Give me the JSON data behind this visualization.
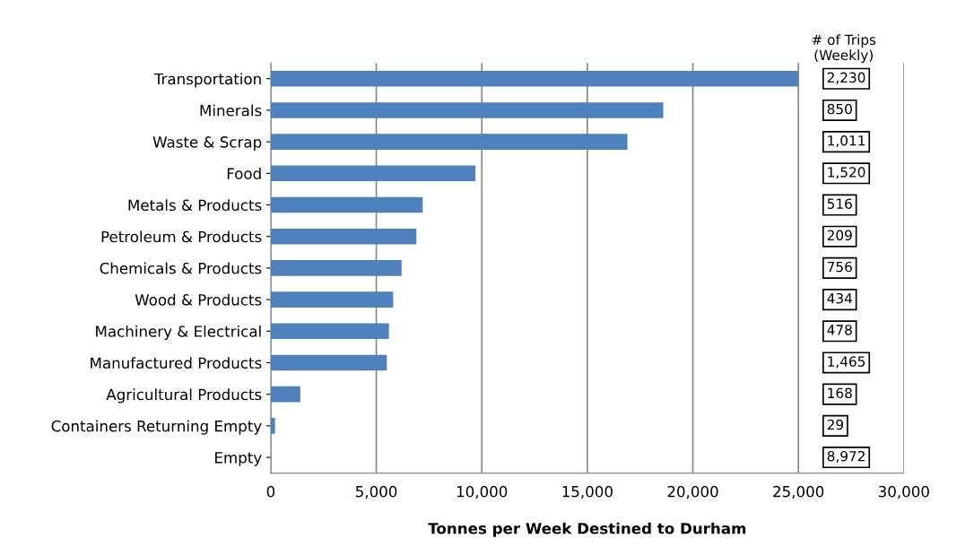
{
  "chart_data": {
    "type": "bar",
    "orientation": "horizontal",
    "categories": [
      "Transportation",
      "Minerals",
      "Waste & Scrap",
      "Food",
      "Metals & Products",
      "Petroleum & Products",
      "Chemicals & Products",
      "Wood & Products",
      "Machinery & Electrical",
      "Manufactured Products",
      "Agricultural Products",
      "Containers Returning Empty",
      "Empty"
    ],
    "values": [
      25000,
      18600,
      16900,
      9700,
      7200,
      6900,
      6200,
      5800,
      5600,
      5500,
      1400,
      200,
      0
    ],
    "color": "#4f81bd",
    "xlabel": "Tonnes per Week Destined to Durham",
    "xlim": [
      0,
      30000
    ],
    "xticks": [
      {
        "value": 0,
        "label": "0"
      },
      {
        "value": 5000,
        "label": "5,000"
      },
      {
        "value": 10000,
        "label": "10,000"
      },
      {
        "value": 15000,
        "label": "15,000"
      },
      {
        "value": 20000,
        "label": "20,000"
      },
      {
        "value": 25000,
        "label": "25,000"
      },
      {
        "value": 30000,
        "label": "30,000"
      }
    ],
    "grid": "x",
    "annotations": [
      "# of Trips\n(Weekly)",
      "2,230",
      "850",
      "1,011",
      "1,520",
      "516",
      "209",
      "756",
      "434",
      "478",
      "1,465",
      "168",
      "29",
      "8,972"
    ]
  }
}
